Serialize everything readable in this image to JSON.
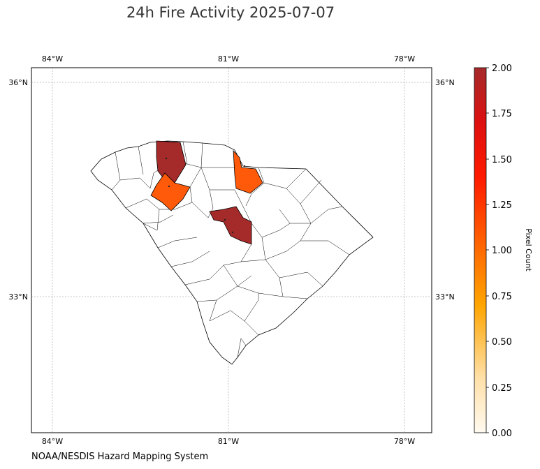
{
  "title": "24h Fire Activity 2025-07-07",
  "credit": "NOAA/NESDIS Hazard Mapping System",
  "map": {
    "lon_ticks_top": [
      "84°W",
      "81°W",
      "78°W"
    ],
    "lon_ticks_bottom": [
      "84°W",
      "81°W",
      "78°W"
    ],
    "lat_ticks_left": [
      "36°N",
      "33°N"
    ],
    "lat_ticks_right": [
      "36°N",
      "33°N"
    ],
    "fill_colors": {
      "high": "#a52a2a",
      "mid": "#ff5a0a"
    },
    "border_color": "#000000"
  },
  "colorbar": {
    "label": "Pixel Count",
    "ticks": [
      "0.00",
      "0.25",
      "0.50",
      "0.75",
      "1.00",
      "1.25",
      "1.50",
      "1.75",
      "2.00"
    ],
    "min": 0,
    "max": 2,
    "colors": [
      "#fffaf0",
      "#ffd080",
      "#ffa500",
      "#ff6a00",
      "#ff0000",
      "#b22222"
    ]
  }
}
